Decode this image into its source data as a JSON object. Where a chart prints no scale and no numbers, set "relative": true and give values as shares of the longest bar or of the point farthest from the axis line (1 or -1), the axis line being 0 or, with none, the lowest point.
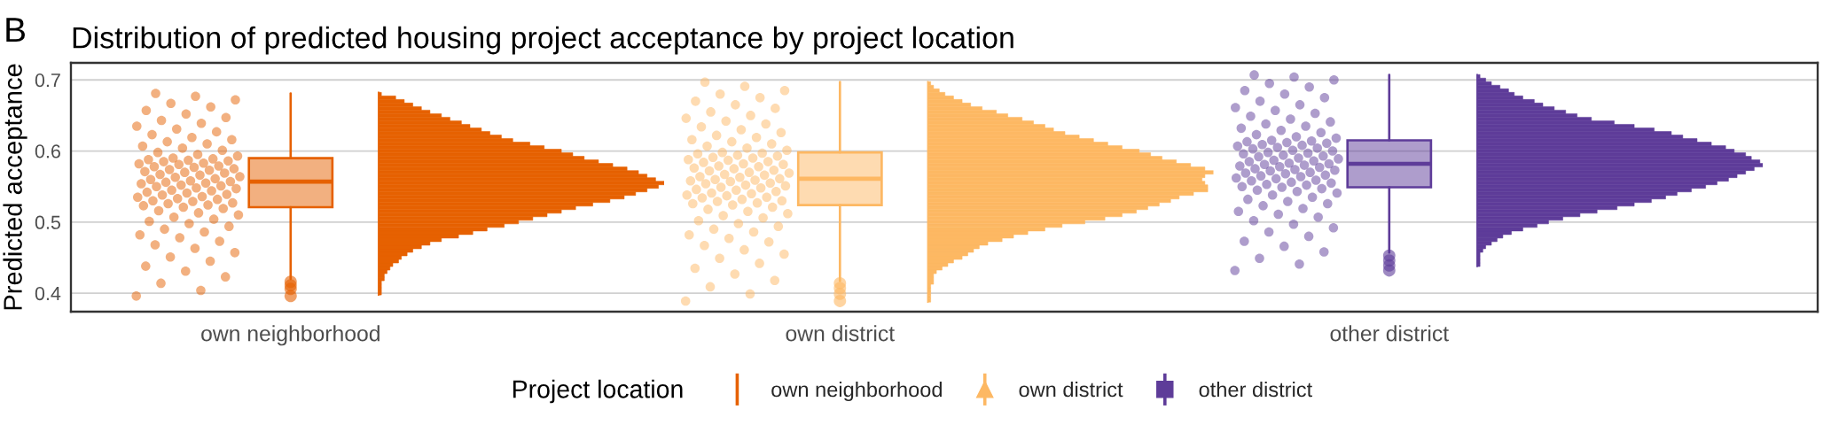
{
  "chart_data": [
    {
      "type": "box",
      "title": "Distribution of predicted housing project acceptance by project location",
      "ylabel": "Predicted acceptance",
      "legend_title": "Project location",
      "annotations": [
        "B"
      ],
      "categories": [
        "own neighborhood",
        "own district",
        "other district"
      ],
      "ylim": [
        0.374,
        0.724
      ],
      "yticks": [
        0.4,
        0.5,
        0.6,
        0.7
      ],
      "grid": "y",
      "legend": "bottom",
      "series": [
        {
          "type": "box",
          "name": "own neighborhood",
          "color": "#e66101",
          "boxes": [
            {
              "low": 0.42,
              "q1": 0.521,
              "median": 0.557,
              "q3": 0.59,
              "high": 0.681,
              "outliers": [
                0.416,
                0.411,
                0.406,
                0.396
              ]
            },
            null,
            null
          ]
        },
        {
          "type": "box",
          "name": "own district",
          "color": "#fdb863",
          "marker": "triangle",
          "boxes": [
            null,
            {
              "low": 0.417,
              "q1": 0.524,
              "median": 0.561,
              "q3": 0.598,
              "high": 0.697,
              "outliers": [
                0.414,
                0.407,
                0.399,
                0.389
              ]
            },
            null
          ]
        },
        {
          "type": "box",
          "name": "other district",
          "color": "#5e3c99",
          "marker": "square",
          "boxes": [
            null,
            null,
            {
              "low": 0.457,
              "q1": 0.549,
              "median": 0.582,
              "q3": 0.615,
              "high": 0.707,
              "outliers": [
                0.453,
                0.446,
                0.439,
                0.432
              ]
            }
          ]
        },
        {
          "type": "scatter",
          "color": "#e66101",
          "x": [
            "own neighborhood",
            "own neighborhood",
            "own neighborhood",
            "own neighborhood",
            "own neighborhood",
            "own neighborhood",
            "own neighborhood",
            "own neighborhood",
            "own neighborhood",
            "own neighborhood",
            "own neighborhood",
            "own neighborhood",
            "own neighborhood",
            "own neighborhood",
            "own neighborhood",
            "own neighborhood",
            "own neighborhood",
            "own neighborhood",
            "own neighborhood",
            "own neighborhood",
            "own neighborhood",
            "own neighborhood",
            "own neighborhood",
            "own neighborhood",
            "own neighborhood",
            "own neighborhood",
            "own neighborhood",
            "own neighborhood",
            "own neighborhood",
            "own neighborhood",
            "own neighborhood",
            "own neighborhood",
            "own neighborhood",
            "own neighborhood",
            "own neighborhood",
            "own neighborhood",
            "own neighborhood",
            "own neighborhood",
            "own neighborhood",
            "own neighborhood",
            "own neighborhood",
            "own neighborhood",
            "own neighborhood",
            "own neighborhood",
            "own neighborhood",
            "own neighborhood",
            "own neighborhood",
            "own neighborhood",
            "own neighborhood",
            "own neighborhood",
            "own neighborhood",
            "own neighborhood",
            "own neighborhood",
            "own neighborhood",
            "own neighborhood",
            "own neighborhood",
            "own neighborhood",
            "own neighborhood",
            "own neighborhood",
            "own neighborhood",
            "own neighborhood",
            "own neighborhood",
            "own neighborhood",
            "own neighborhood",
            "own neighborhood",
            "own neighborhood",
            "own neighborhood",
            "own neighborhood",
            "own neighborhood",
            "own neighborhood",
            "own neighborhood",
            "own neighborhood",
            "own neighborhood",
            "own neighborhood",
            "own neighborhood",
            "own neighborhood",
            "own neighborhood",
            "own neighborhood",
            "own neighborhood",
            "own neighborhood",
            "own neighborhood",
            "own neighborhood",
            "own neighborhood",
            "own neighborhood",
            "own neighborhood",
            "own neighborhood",
            "own neighborhood",
            "own neighborhood",
            "own neighborhood",
            "own neighborhood",
            "own neighborhood",
            "own neighborhood",
            "own neighborhood",
            "own neighborhood",
            "own neighborhood",
            "own neighborhood",
            "own neighborhood",
            "own neighborhood",
            "own neighborhood",
            "own neighborhood"
          ],
          "values": [
            0.396,
            0.404,
            0.414,
            0.423,
            0.431,
            0.438,
            0.445,
            0.451,
            0.457,
            0.463,
            0.468,
            0.473,
            0.478,
            0.482,
            0.486,
            0.49,
            0.494,
            0.498,
            0.501,
            0.504,
            0.507,
            0.51,
            0.513,
            0.516,
            0.519,
            0.521,
            0.523,
            0.524,
            0.526,
            0.527,
            0.529,
            0.53,
            0.532,
            0.533,
            0.535,
            0.536,
            0.538,
            0.539,
            0.541,
            0.542,
            0.544,
            0.545,
            0.547,
            0.548,
            0.55,
            0.551,
            0.552,
            0.554,
            0.555,
            0.556,
            0.557,
            0.558,
            0.56,
            0.561,
            0.563,
            0.564,
            0.566,
            0.567,
            0.569,
            0.57,
            0.571,
            0.573,
            0.574,
            0.575,
            0.577,
            0.578,
            0.579,
            0.581,
            0.582,
            0.583,
            0.585,
            0.586,
            0.587,
            0.588,
            0.589,
            0.59,
            0.593,
            0.595,
            0.598,
            0.601,
            0.604,
            0.607,
            0.61,
            0.613,
            0.616,
            0.619,
            0.623,
            0.627,
            0.631,
            0.635,
            0.639,
            0.643,
            0.647,
            0.652,
            0.657,
            0.662,
            0.667,
            0.672,
            0.677,
            0.681
          ]
        },
        {
          "type": "scatter",
          "color": "#fdb863",
          "x": [
            "own district",
            "own district",
            "own district",
            "own district",
            "own district",
            "own district",
            "own district",
            "own district",
            "own district",
            "own district",
            "own district",
            "own district",
            "own district",
            "own district",
            "own district",
            "own district",
            "own district",
            "own district",
            "own district",
            "own district",
            "own district",
            "own district",
            "own district",
            "own district",
            "own district",
            "own district",
            "own district",
            "own district",
            "own district",
            "own district",
            "own district",
            "own district",
            "own district",
            "own district",
            "own district",
            "own district",
            "own district",
            "own district",
            "own district",
            "own district",
            "own district",
            "own district",
            "own district",
            "own district",
            "own district",
            "own district",
            "own district",
            "own district",
            "own district",
            "own district",
            "own district",
            "own district",
            "own district",
            "own district",
            "own district",
            "own district",
            "own district",
            "own district",
            "own district",
            "own district",
            "own district",
            "own district",
            "own district",
            "own district",
            "own district",
            "own district",
            "own district",
            "own district",
            "own district",
            "own district",
            "own district",
            "own district",
            "own district",
            "own district",
            "own district",
            "own district",
            "own district",
            "own district",
            "own district",
            "own district",
            "own district",
            "own district",
            "own district",
            "own district",
            "own district",
            "own district",
            "own district",
            "own district",
            "own district",
            "own district",
            "own district",
            "own district",
            "own district",
            "own district",
            "own district",
            "own district",
            "own district",
            "own district",
            "own district",
            "own district"
          ],
          "values": [
            0.389,
            0.399,
            0.409,
            0.418,
            0.427,
            0.435,
            0.442,
            0.449,
            0.455,
            0.461,
            0.467,
            0.472,
            0.477,
            0.482,
            0.486,
            0.49,
            0.494,
            0.498,
            0.502,
            0.506,
            0.509,
            0.512,
            0.515,
            0.518,
            0.521,
            0.524,
            0.526,
            0.527,
            0.529,
            0.53,
            0.532,
            0.534,
            0.535,
            0.537,
            0.538,
            0.54,
            0.541,
            0.543,
            0.545,
            0.546,
            0.548,
            0.549,
            0.551,
            0.552,
            0.554,
            0.555,
            0.557,
            0.558,
            0.559,
            0.56,
            0.561,
            0.563,
            0.564,
            0.566,
            0.567,
            0.569,
            0.57,
            0.572,
            0.573,
            0.575,
            0.576,
            0.578,
            0.579,
            0.581,
            0.582,
            0.584,
            0.585,
            0.587,
            0.588,
            0.59,
            0.591,
            0.593,
            0.594,
            0.596,
            0.597,
            0.598,
            0.601,
            0.604,
            0.607,
            0.61,
            0.613,
            0.616,
            0.619,
            0.622,
            0.626,
            0.63,
            0.634,
            0.638,
            0.642,
            0.646,
            0.65,
            0.655,
            0.66,
            0.665,
            0.67,
            0.675,
            0.68,
            0.685,
            0.691,
            0.697
          ]
        },
        {
          "type": "scatter",
          "color": "#5e3c99",
          "x": [
            "other district",
            "other district",
            "other district",
            "other district",
            "other district",
            "other district",
            "other district",
            "other district",
            "other district",
            "other district",
            "other district",
            "other district",
            "other district",
            "other district",
            "other district",
            "other district",
            "other district",
            "other district",
            "other district",
            "other district",
            "other district",
            "other district",
            "other district",
            "other district",
            "other district",
            "other district",
            "other district",
            "other district",
            "other district",
            "other district",
            "other district",
            "other district",
            "other district",
            "other district",
            "other district",
            "other district",
            "other district",
            "other district",
            "other district",
            "other district",
            "other district",
            "other district",
            "other district",
            "other district",
            "other district",
            "other district",
            "other district",
            "other district",
            "other district",
            "other district",
            "other district",
            "other district",
            "other district",
            "other district",
            "other district",
            "other district",
            "other district",
            "other district",
            "other district",
            "other district",
            "other district",
            "other district",
            "other district",
            "other district",
            "other district",
            "other district",
            "other district",
            "other district",
            "other district",
            "other district",
            "other district",
            "other district",
            "other district",
            "other district",
            "other district",
            "other district",
            "other district",
            "other district",
            "other district",
            "other district",
            "other district",
            "other district",
            "other district",
            "other district",
            "other district",
            "other district",
            "other district",
            "other district",
            "other district",
            "other district",
            "other district",
            "other district",
            "other district",
            "other district",
            "other district",
            "other district",
            "other district",
            "other district",
            "other district",
            "other district"
          ],
          "values": [
            0.432,
            0.441,
            0.449,
            0.458,
            0.466,
            0.473,
            0.48,
            0.486,
            0.492,
            0.497,
            0.502,
            0.507,
            0.511,
            0.515,
            0.519,
            0.523,
            0.526,
            0.529,
            0.532,
            0.535,
            0.538,
            0.541,
            0.543,
            0.545,
            0.547,
            0.549,
            0.55,
            0.552,
            0.553,
            0.555,
            0.556,
            0.558,
            0.559,
            0.561,
            0.562,
            0.564,
            0.565,
            0.566,
            0.568,
            0.569,
            0.57,
            0.572,
            0.573,
            0.574,
            0.575,
            0.577,
            0.578,
            0.579,
            0.58,
            0.581,
            0.582,
            0.583,
            0.585,
            0.586,
            0.587,
            0.589,
            0.59,
            0.592,
            0.593,
            0.594,
            0.596,
            0.597,
            0.598,
            0.6,
            0.601,
            0.603,
            0.604,
            0.605,
            0.607,
            0.608,
            0.609,
            0.611,
            0.612,
            0.613,
            0.614,
            0.615,
            0.618,
            0.62,
            0.623,
            0.626,
            0.629,
            0.632,
            0.635,
            0.638,
            0.641,
            0.645,
            0.649,
            0.653,
            0.657,
            0.661,
            0.665,
            0.67,
            0.675,
            0.68,
            0.685,
            0.69,
            0.695,
            0.7,
            0.704,
            0.707
          ]
        }
      ]
    },
    {
      "type": "bar",
      "orientation": "horizontal",
      "relative": true,
      "tick_labels": false,
      "ylim": [
        0.374,
        0.724
      ],
      "x": [
        0.4,
        0.405,
        0.41,
        0.415,
        0.42,
        0.425,
        0.43,
        0.435,
        0.44,
        0.445,
        0.45,
        0.455,
        0.46,
        0.465,
        0.47,
        0.475,
        0.48,
        0.485,
        0.49,
        0.495,
        0.5,
        0.505,
        0.51,
        0.515,
        0.52,
        0.525,
        0.53,
        0.535,
        0.54,
        0.545,
        0.55,
        0.555,
        0.56,
        0.565,
        0.57,
        0.575,
        0.58,
        0.585,
        0.59,
        0.595,
        0.6,
        0.605,
        0.61,
        0.615,
        0.62,
        0.625,
        0.63,
        0.635,
        0.64,
        0.645,
        0.65,
        0.655,
        0.66,
        0.665,
        0.67,
        0.675,
        0.68
      ],
      "series": [
        {
          "color": "#e66101",
          "values": [
            0.01,
            0.01,
            0.01,
            0.01,
            0.02,
            0.02,
            0.03,
            0.04,
            0.05,
            0.07,
            0.08,
            0.1,
            0.12,
            0.15,
            0.18,
            0.22,
            0.28,
            0.33,
            0.38,
            0.44,
            0.49,
            0.54,
            0.59,
            0.64,
            0.69,
            0.75,
            0.81,
            0.86,
            0.9,
            0.94,
            0.98,
            1.0,
            0.97,
            0.94,
            0.91,
            0.87,
            0.82,
            0.77,
            0.72,
            0.68,
            0.64,
            0.58,
            0.53,
            0.47,
            0.43,
            0.39,
            0.36,
            0.32,
            0.29,
            0.25,
            0.22,
            0.18,
            0.15,
            0.12,
            0.09,
            0.06,
            0.01
          ]
        }
      ]
    },
    {
      "type": "bar",
      "orientation": "horizontal",
      "relative": true,
      "tick_labels": false,
      "ylim": [
        0.374,
        0.724
      ],
      "x": [
        0.39,
        0.395,
        0.4,
        0.405,
        0.41,
        0.415,
        0.42,
        0.425,
        0.43,
        0.435,
        0.44,
        0.445,
        0.45,
        0.455,
        0.46,
        0.465,
        0.47,
        0.475,
        0.48,
        0.485,
        0.49,
        0.495,
        0.5,
        0.505,
        0.51,
        0.515,
        0.52,
        0.525,
        0.53,
        0.535,
        0.54,
        0.545,
        0.55,
        0.555,
        0.56,
        0.565,
        0.57,
        0.575,
        0.58,
        0.585,
        0.59,
        0.595,
        0.6,
        0.605,
        0.61,
        0.615,
        0.62,
        0.625,
        0.63,
        0.635,
        0.64,
        0.645,
        0.65,
        0.655,
        0.66,
        0.665,
        0.67,
        0.675,
        0.68,
        0.685,
        0.69,
        0.695
      ],
      "series": [
        {
          "color": "#fdb863",
          "values": [
            0.01,
            0.01,
            0.01,
            0.01,
            0.01,
            0.02,
            0.02,
            0.02,
            0.03,
            0.05,
            0.07,
            0.09,
            0.12,
            0.14,
            0.16,
            0.18,
            0.21,
            0.26,
            0.3,
            0.35,
            0.41,
            0.47,
            0.55,
            0.62,
            0.68,
            0.73,
            0.77,
            0.81,
            0.85,
            0.88,
            0.93,
            0.98,
            0.98,
            0.97,
            0.96,
            0.97,
            1.0,
            0.97,
            0.92,
            0.87,
            0.82,
            0.78,
            0.74,
            0.68,
            0.63,
            0.58,
            0.53,
            0.48,
            0.44,
            0.41,
            0.37,
            0.33,
            0.28,
            0.24,
            0.19,
            0.15,
            0.12,
            0.09,
            0.06,
            0.04,
            0.02,
            0.01
          ]
        }
      ]
    },
    {
      "type": "bar",
      "orientation": "horizontal",
      "relative": true,
      "tick_labels": false,
      "ylim": [
        0.374,
        0.724
      ],
      "x": [
        0.44,
        0.445,
        0.45,
        0.455,
        0.46,
        0.465,
        0.47,
        0.475,
        0.48,
        0.485,
        0.49,
        0.495,
        0.5,
        0.505,
        0.51,
        0.515,
        0.52,
        0.525,
        0.53,
        0.535,
        0.54,
        0.545,
        0.55,
        0.555,
        0.56,
        0.565,
        0.57,
        0.575,
        0.58,
        0.585,
        0.59,
        0.595,
        0.6,
        0.605,
        0.61,
        0.615,
        0.62,
        0.625,
        0.63,
        0.635,
        0.64,
        0.645,
        0.65,
        0.655,
        0.66,
        0.665,
        0.67,
        0.675,
        0.68,
        0.685,
        0.69,
        0.695,
        0.7,
        0.705
      ],
      "series": [
        {
          "color": "#5e3c99",
          "values": [
            0.01,
            0.01,
            0.01,
            0.01,
            0.02,
            0.03,
            0.05,
            0.07,
            0.09,
            0.12,
            0.16,
            0.21,
            0.25,
            0.3,
            0.36,
            0.42,
            0.49,
            0.55,
            0.61,
            0.66,
            0.7,
            0.75,
            0.8,
            0.84,
            0.88,
            0.91,
            0.94,
            0.97,
            1.0,
            0.99,
            0.96,
            0.94,
            0.9,
            0.87,
            0.82,
            0.77,
            0.72,
            0.68,
            0.62,
            0.55,
            0.48,
            0.4,
            0.35,
            0.31,
            0.27,
            0.23,
            0.2,
            0.16,
            0.13,
            0.11,
            0.08,
            0.05,
            0.03,
            0.01
          ]
        }
      ]
    }
  ]
}
